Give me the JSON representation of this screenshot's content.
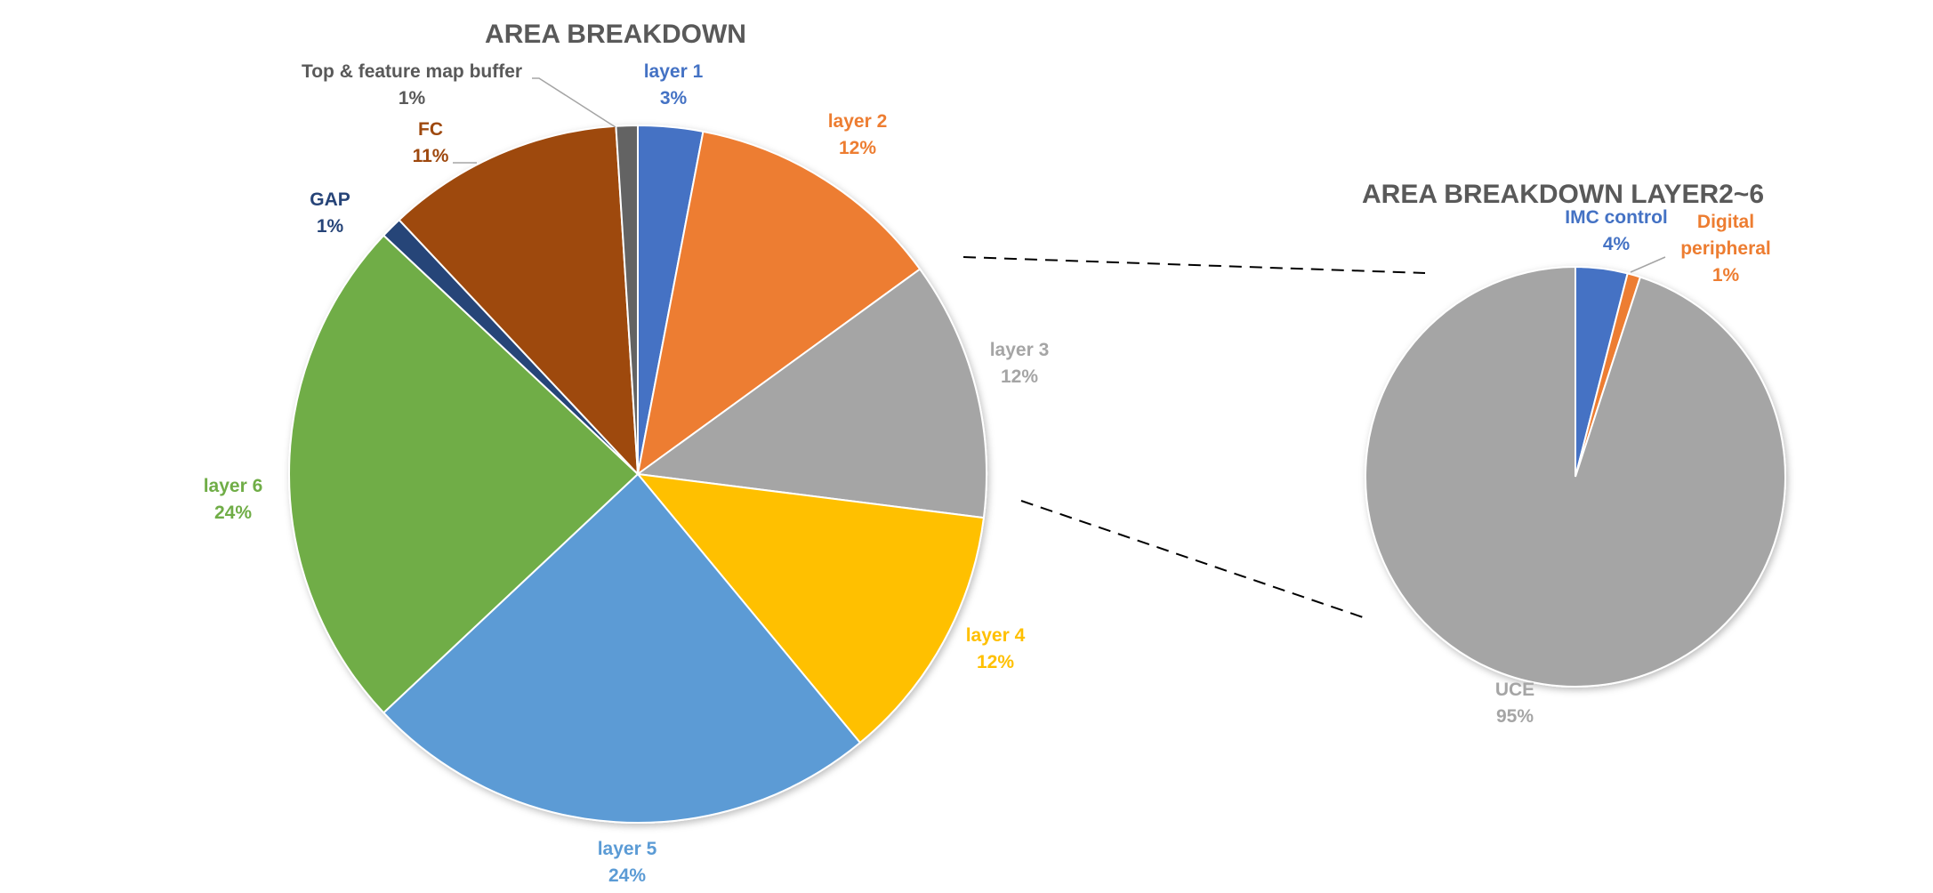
{
  "chart_data": [
    {
      "type": "pie",
      "title": "AREA BREAKDOWN",
      "slices": [
        {
          "label": "layer 1",
          "value": 3,
          "display": "3%",
          "color": "#4472c4",
          "label_color": "#4472c4"
        },
        {
          "label": "layer 2",
          "value": 12,
          "display": "12%",
          "color": "#ed7d31",
          "label_color": "#ed7d31"
        },
        {
          "label": "layer 3",
          "value": 12,
          "display": "12%",
          "color": "#a5a5a5",
          "label_color": "#a5a5a5"
        },
        {
          "label": "layer 4",
          "value": 12,
          "display": "12%",
          "color": "#ffc000",
          "label_color": "#ffc000"
        },
        {
          "label": "layer 5",
          "value": 24,
          "display": "24%",
          "color": "#5b9bd5",
          "label_color": "#5b9bd5"
        },
        {
          "label": "layer 6",
          "value": 24,
          "display": "24%",
          "color": "#70ad47",
          "label_color": "#70ad47"
        },
        {
          "label": "GAP",
          "value": 1,
          "display": "1%",
          "color": "#264478",
          "label_color": "#264478"
        },
        {
          "label": "FC",
          "value": 11,
          "display": "11%",
          "color": "#9e480e",
          "label_color": "#9e480e"
        },
        {
          "label": "Top & feature map buffer",
          "value": 1,
          "display": "1%",
          "color": "#636363",
          "label_color": "#595959"
        }
      ]
    },
    {
      "type": "pie",
      "title": "AREA BREAKDOWN LAYER2~6",
      "slices": [
        {
          "label": "IMC control",
          "value": 4,
          "display": "4%",
          "color": "#4472c4",
          "label_color": "#4472c4"
        },
        {
          "label": "Digital peripheral",
          "value": 1,
          "display": "1%",
          "color": "#ed7d31",
          "label_color": "#ed7d31"
        },
        {
          "label": "UCE",
          "value": 95,
          "display": "95%",
          "color": "#a5a5a5",
          "label_color": "#a5a5a5"
        }
      ]
    }
  ]
}
